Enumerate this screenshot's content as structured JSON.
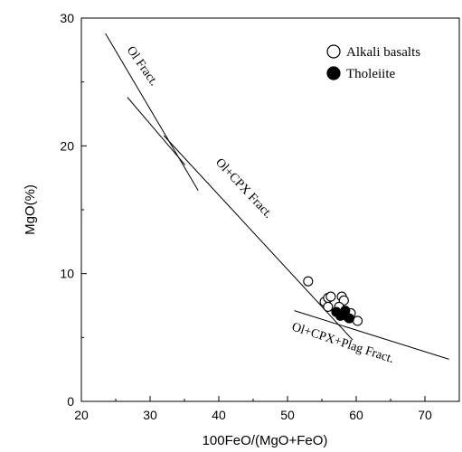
{
  "chart_data": {
    "type": "scatter",
    "title": "",
    "xlabel": "100FeO/(MgO+FeO)",
    "ylabel": "MgO(%)",
    "xlim": [
      20,
      75
    ],
    "ylim": [
      0,
      30
    ],
    "x_ticks": [
      "20",
      "30",
      "40",
      "50",
      "60",
      "70"
    ],
    "y_ticks": [
      "0",
      "10",
      "20",
      "30"
    ],
    "grid": false,
    "legend_position": "top-right",
    "series": [
      {
        "name": "Alkali basalts",
        "marker": "open-circle",
        "points": [
          {
            "x": 53.0,
            "y": 9.4
          },
          {
            "x": 55.4,
            "y": 7.8
          },
          {
            "x": 55.9,
            "y": 8.1
          },
          {
            "x": 56.3,
            "y": 8.2
          },
          {
            "x": 55.9,
            "y": 7.4
          },
          {
            "x": 57.9,
            "y": 8.2
          },
          {
            "x": 58.2,
            "y": 7.9
          },
          {
            "x": 57.5,
            "y": 7.4
          },
          {
            "x": 58.8,
            "y": 6.6
          },
          {
            "x": 59.2,
            "y": 6.9
          },
          {
            "x": 60.2,
            "y": 6.3
          }
        ]
      },
      {
        "name": "Tholeiite",
        "marker": "filled-circle",
        "points": [
          {
            "x": 57.1,
            "y": 7.0
          },
          {
            "x": 57.7,
            "y": 6.7
          },
          {
            "x": 58.1,
            "y": 6.8
          },
          {
            "x": 58.4,
            "y": 7.1
          },
          {
            "x": 59.0,
            "y": 6.5
          }
        ]
      }
    ],
    "trend_lines": [
      {
        "label": "Ol Fract.",
        "from": [
          23.5,
          28.8
        ],
        "to": [
          37.0,
          16.5
        ]
      },
      {
        "label": "",
        "from": [
          26.7,
          23.8
        ],
        "to": [
          35.1,
          18.5
        ]
      },
      {
        "label": "Ol+CPX Fract.",
        "from": [
          32.0,
          20.8
        ],
        "to": [
          59.5,
          4.8
        ]
      },
      {
        "label": "Ol+CPX+Plag Fract.",
        "from": [
          51.0,
          7.1
        ],
        "to": [
          73.5,
          3.3
        ]
      }
    ]
  }
}
